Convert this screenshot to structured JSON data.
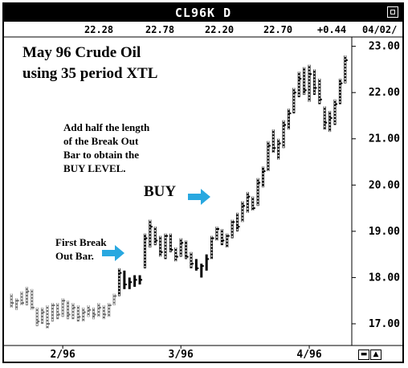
{
  "window": {
    "title": "CL96K D"
  },
  "quote_bar": {
    "values": [
      "22.28",
      "22.78",
      "22.20",
      "22.70",
      "+0.44",
      "04/02/"
    ]
  },
  "annotations": {
    "title_line1": "May 96 Crude Oil",
    "title_line2": "using 35 period XTL",
    "hint_line1": "Add half the length",
    "hint_line2": "of the Break Out",
    "hint_line3": "Bar to obtain the",
    "hint_line4": "BUY LEVEL.",
    "buy": "BUY",
    "first_break_line1": "First Break",
    "first_break_line2": "Out Bar."
  },
  "colors": {
    "arrow": "#29a8e0",
    "bars": "#000000",
    "neutral_bars": "#6e6e6e"
  },
  "chart_data": {
    "type": "ohlc",
    "title": "",
    "ylim": [
      16.6,
      23.15
    ],
    "yticks": [
      17.0,
      18.0,
      19.0,
      20.0,
      21.0,
      22.0,
      23.0
    ],
    "ytick_labels": [
      "17.00",
      "18.00",
      "19.00",
      "20.00",
      "21.00",
      "22.00",
      "23.00"
    ],
    "xtick_labels": [
      "2/96",
      "3/96",
      "4/96"
    ],
    "xtick_index": [
      10,
      33,
      58
    ],
    "grid": false,
    "bars": [
      {
        "h": 17.65,
        "l": 17.35,
        "c": 17.45,
        "s": "neutral"
      },
      {
        "h": 17.55,
        "l": 17.3,
        "c": 17.5,
        "s": "neutral"
      },
      {
        "h": 17.7,
        "l": 17.4,
        "c": 17.45,
        "s": "neutral"
      },
      {
        "h": 17.8,
        "l": 17.4,
        "c": 17.7,
        "s": "neutral"
      },
      {
        "h": 17.75,
        "l": 17.3,
        "c": 17.35,
        "s": "neutral"
      },
      {
        "h": 17.35,
        "l": 16.95,
        "c": 17.05,
        "s": "neutral"
      },
      {
        "h": 17.35,
        "l": 17.0,
        "c": 17.25,
        "s": "neutral"
      },
      {
        "h": 17.4,
        "l": 16.9,
        "c": 17.0,
        "s": "neutral"
      },
      {
        "h": 17.45,
        "l": 17.05,
        "c": 17.4,
        "s": "neutral"
      },
      {
        "h": 17.45,
        "l": 17.1,
        "c": 17.2,
        "s": "neutral"
      },
      {
        "h": 17.55,
        "l": 17.15,
        "c": 17.5,
        "s": "neutral"
      },
      {
        "h": 17.5,
        "l": 17.1,
        "c": 17.2,
        "s": "neutral"
      },
      {
        "h": 17.45,
        "l": 17.1,
        "c": 17.35,
        "s": "neutral"
      },
      {
        "h": 17.4,
        "l": 17.05,
        "c": 17.15,
        "s": "neutral"
      },
      {
        "h": 17.35,
        "l": 17.05,
        "c": 17.25,
        "s": "neutral"
      },
      {
        "h": 17.4,
        "l": 17.15,
        "c": 17.3,
        "s": "neutral"
      },
      {
        "h": 17.35,
        "l": 17.1,
        "c": 17.2,
        "s": "neutral"
      },
      {
        "h": 17.45,
        "l": 17.15,
        "c": 17.35,
        "s": "neutral"
      },
      {
        "h": 17.4,
        "l": 17.1,
        "c": 17.2,
        "s": "neutral"
      },
      {
        "h": 17.45,
        "l": 17.15,
        "c": 17.4,
        "s": "neutral"
      },
      {
        "h": 17.65,
        "l": 17.4,
        "c": 17.6,
        "s": "neutral"
      },
      {
        "h": 18.2,
        "l": 17.6,
        "c": 18.1,
        "s": "up"
      },
      {
        "h": 18.15,
        "l": 17.75,
        "c": 17.85,
        "s": "down"
      },
      {
        "h": 18.0,
        "l": 17.75,
        "c": 17.9,
        "s": "down"
      },
      {
        "h": 18.05,
        "l": 17.8,
        "c": 17.95,
        "s": "down"
      },
      {
        "h": 18.05,
        "l": 17.85,
        "c": 17.95,
        "s": "down"
      },
      {
        "h": 18.95,
        "l": 18.2,
        "c": 18.85,
        "s": "up"
      },
      {
        "h": 19.25,
        "l": 18.65,
        "c": 19.1,
        "s": "up"
      },
      {
        "h": 19.1,
        "l": 18.7,
        "c": 18.8,
        "s": "up"
      },
      {
        "h": 18.9,
        "l": 18.45,
        "c": 18.55,
        "s": "up"
      },
      {
        "h": 18.95,
        "l": 18.4,
        "c": 18.9,
        "s": "up"
      },
      {
        "h": 18.95,
        "l": 18.55,
        "c": 18.6,
        "s": "up"
      },
      {
        "h": 18.65,
        "l": 18.35,
        "c": 18.45,
        "s": "up"
      },
      {
        "h": 18.85,
        "l": 18.45,
        "c": 18.75,
        "s": "up"
      },
      {
        "h": 18.8,
        "l": 18.4,
        "c": 18.45,
        "s": "up"
      },
      {
        "h": 18.55,
        "l": 18.2,
        "c": 18.3,
        "s": "up"
      },
      {
        "h": 18.4,
        "l": 18.15,
        "c": 18.2,
        "s": "down"
      },
      {
        "h": 18.3,
        "l": 18.0,
        "c": 18.25,
        "s": "down"
      },
      {
        "h": 18.5,
        "l": 18.15,
        "c": 18.4,
        "s": "down"
      },
      {
        "h": 18.9,
        "l": 18.4,
        "c": 18.85,
        "s": "up"
      },
      {
        "h": 19.1,
        "l": 18.8,
        "c": 19.05,
        "s": "up"
      },
      {
        "h": 19.05,
        "l": 18.7,
        "c": 18.8,
        "s": "up"
      },
      {
        "h": 18.95,
        "l": 18.65,
        "c": 18.9,
        "s": "up"
      },
      {
        "h": 19.25,
        "l": 18.85,
        "c": 19.2,
        "s": "up"
      },
      {
        "h": 19.4,
        "l": 19.0,
        "c": 19.1,
        "s": "up"
      },
      {
        "h": 19.65,
        "l": 19.2,
        "c": 19.55,
        "s": "up"
      },
      {
        "h": 19.85,
        "l": 19.4,
        "c": 19.75,
        "s": "up"
      },
      {
        "h": 19.75,
        "l": 19.45,
        "c": 19.5,
        "s": "up"
      },
      {
        "h": 20.15,
        "l": 19.55,
        "c": 20.05,
        "s": "up"
      },
      {
        "h": 20.4,
        "l": 19.95,
        "c": 20.3,
        "s": "up"
      },
      {
        "h": 20.95,
        "l": 20.3,
        "c": 20.85,
        "s": "up"
      },
      {
        "h": 21.2,
        "l": 20.7,
        "c": 20.8,
        "s": "up"
      },
      {
        "h": 21.0,
        "l": 20.55,
        "c": 20.9,
        "s": "up"
      },
      {
        "h": 21.4,
        "l": 20.8,
        "c": 21.3,
        "s": "up"
      },
      {
        "h": 21.65,
        "l": 21.2,
        "c": 21.55,
        "s": "up"
      },
      {
        "h": 22.1,
        "l": 21.55,
        "c": 22.0,
        "s": "up"
      },
      {
        "h": 22.45,
        "l": 21.9,
        "c": 22.3,
        "s": "up"
      },
      {
        "h": 22.55,
        "l": 21.95,
        "c": 22.05,
        "s": "up"
      },
      {
        "h": 22.6,
        "l": 21.8,
        "c": 22.4,
        "s": "up"
      },
      {
        "h": 22.5,
        "l": 21.95,
        "c": 22.1,
        "s": "up"
      },
      {
        "h": 22.3,
        "l": 21.75,
        "c": 21.85,
        "s": "up"
      },
      {
        "h": 21.7,
        "l": 21.2,
        "c": 21.35,
        "s": "up"
      },
      {
        "h": 21.6,
        "l": 21.15,
        "c": 21.45,
        "s": "up"
      },
      {
        "h": 21.85,
        "l": 21.3,
        "c": 21.75,
        "s": "up"
      },
      {
        "h": 22.3,
        "l": 21.75,
        "c": 22.2,
        "s": "up"
      },
      {
        "h": 22.8,
        "l": 22.2,
        "c": 22.7,
        "s": "up"
      }
    ]
  }
}
